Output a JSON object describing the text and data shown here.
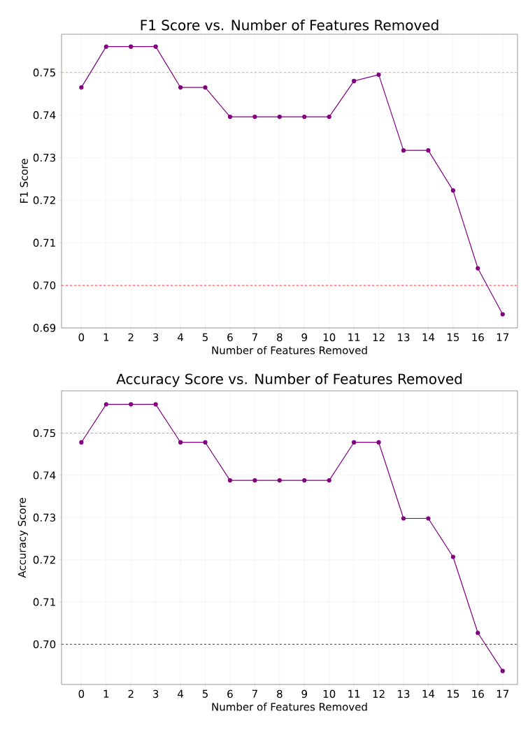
{
  "chart_data": [
    {
      "type": "line",
      "title": "F1 Score vs. Number of Features Removed",
      "xlabel": "Number of Features Removed",
      "ylabel": "F1 Score",
      "x": [
        0,
        1,
        2,
        3,
        4,
        5,
        6,
        7,
        8,
        9,
        10,
        11,
        12,
        13,
        14,
        15,
        16,
        17
      ],
      "series": [
        {
          "color": "#800080",
          "values": [
            0.7465,
            0.7561,
            0.7561,
            0.7561,
            0.7465,
            0.7465,
            0.7396,
            0.7396,
            0.7396,
            0.7396,
            0.7396,
            0.748,
            0.7495,
            0.7317,
            0.7317,
            0.7223,
            0.704,
            0.6932
          ]
        }
      ],
      "xlim": [
        -0.8,
        17.6
      ],
      "ylim": [
        0.69,
        0.759
      ],
      "xticks": [
        0,
        1,
        2,
        3,
        4,
        5,
        6,
        7,
        8,
        9,
        10,
        11,
        12,
        13,
        14,
        15,
        16,
        17
      ],
      "yticks": [
        {
          "value": 0.69,
          "label": "0.69"
        },
        {
          "value": 0.7,
          "label": "0.70"
        },
        {
          "value": 0.71,
          "label": "0.71"
        },
        {
          "value": 0.72,
          "label": "0.72"
        },
        {
          "value": 0.73,
          "label": "0.73"
        },
        {
          "value": 0.74,
          "label": "0.74"
        },
        {
          "value": 0.75,
          "label": "0.75"
        }
      ],
      "ref_lines": [
        {
          "axis": "y",
          "value": 0.75,
          "color": "#ffa500",
          "line_style": "dashed"
        },
        {
          "axis": "y",
          "value": 0.7,
          "color": "#ff0000",
          "line_style": "dashed"
        }
      ],
      "grid": true,
      "marker": "circle",
      "line_style": "solid"
    },
    {
      "type": "line",
      "title": "Accuracy Score vs. Number of Features Removed",
      "xlabel": "Number of Features Removed",
      "ylabel": "Accuracy Score",
      "x": [
        0,
        1,
        2,
        3,
        4,
        5,
        6,
        7,
        8,
        9,
        10,
        11,
        12,
        13,
        14,
        15,
        16,
        17
      ],
      "series": [
        {
          "color": "#800080",
          "values": [
            0.7478,
            0.7568,
            0.7568,
            0.7568,
            0.7478,
            0.7478,
            0.7388,
            0.7388,
            0.7388,
            0.7388,
            0.7388,
            0.7478,
            0.7478,
            0.7298,
            0.7298,
            0.7207,
            0.7027,
            0.6937
          ]
        }
      ],
      "xlim": [
        -0.8,
        17.6
      ],
      "ylim": [
        0.6905,
        0.76
      ],
      "xticks": [
        0,
        1,
        2,
        3,
        4,
        5,
        6,
        7,
        8,
        9,
        10,
        11,
        12,
        13,
        14,
        15,
        16,
        17
      ],
      "yticks": [
        {
          "value": 0.7,
          "label": "0.70"
        },
        {
          "value": 0.71,
          "label": "0.71"
        },
        {
          "value": 0.72,
          "label": "0.72"
        },
        {
          "value": 0.73,
          "label": "0.73"
        },
        {
          "value": 0.74,
          "label": "0.74"
        },
        {
          "value": 0.75,
          "label": "0.75"
        }
      ],
      "ref_lines": [
        {
          "axis": "y",
          "value": 0.75,
          "color": "#ffa500",
          "line_style": "dashed"
        },
        {
          "axis": "y",
          "value": 0.7,
          "color": "#ff0000",
          "line_style": "dashed"
        }
      ],
      "grid": true,
      "marker": "circle",
      "line_style": "solid"
    }
  ]
}
